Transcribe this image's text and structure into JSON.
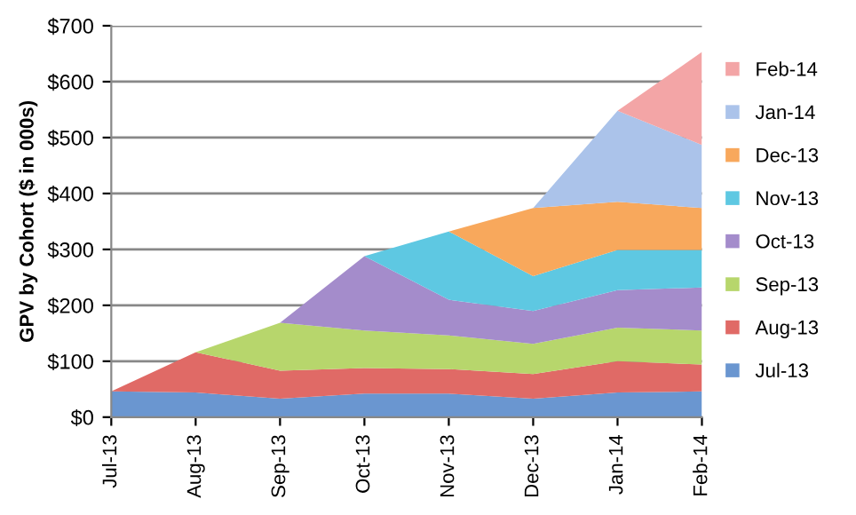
{
  "chart_data": {
    "type": "area",
    "stacked": true,
    "ylabel": "GPV by Cohort ($ in 000s)",
    "categories": [
      "Jul-13",
      "Aug-13",
      "Sep-13",
      "Oct-13",
      "Nov-13",
      "Dec-13",
      "Jan-14",
      "Feb-14"
    ],
    "series": [
      {
        "name": "Jul-13",
        "color": "#6a96d0",
        "values": [
          46,
          44,
          33,
          42,
          42,
          33,
          44,
          46
        ]
      },
      {
        "name": "Aug-13",
        "color": "#e06a66",
        "values": [
          0,
          72,
          50,
          46,
          44,
          44,
          56,
          48
        ]
      },
      {
        "name": "Sep-13",
        "color": "#b7d66c",
        "values": [
          0,
          0,
          86,
          67,
          60,
          54,
          60,
          61
        ]
      },
      {
        "name": "Oct-13",
        "color": "#a48ccb",
        "values": [
          0,
          0,
          0,
          133,
          64,
          59,
          67,
          77
        ]
      },
      {
        "name": "Nov-13",
        "color": "#5ec8e2",
        "values": [
          0,
          0,
          0,
          0,
          122,
          62,
          72,
          67
        ]
      },
      {
        "name": "Dec-13",
        "color": "#f8a85c",
        "values": [
          0,
          0,
          0,
          0,
          0,
          122,
          86,
          75
        ]
      },
      {
        "name": "Jan-14",
        "color": "#abc3ea",
        "values": [
          0,
          0,
          0,
          0,
          0,
          0,
          163,
          113
        ]
      },
      {
        "name": "Feb-14",
        "color": "#f3a5a6",
        "values": [
          0,
          0,
          0,
          0,
          0,
          0,
          0,
          166
        ]
      }
    ],
    "ylim": [
      0,
      700
    ],
    "yticks": [
      {
        "value": 0,
        "label": "$0"
      },
      {
        "value": 100,
        "label": "$100"
      },
      {
        "value": 200,
        "label": "$200"
      },
      {
        "value": 300,
        "label": "$300"
      },
      {
        "value": 400,
        "label": "$400"
      },
      {
        "value": 500,
        "label": "$500"
      },
      {
        "value": 600,
        "label": "$600"
      },
      {
        "value": 700,
        "label": "$700"
      }
    ],
    "grid": "y",
    "legend": "right"
  }
}
